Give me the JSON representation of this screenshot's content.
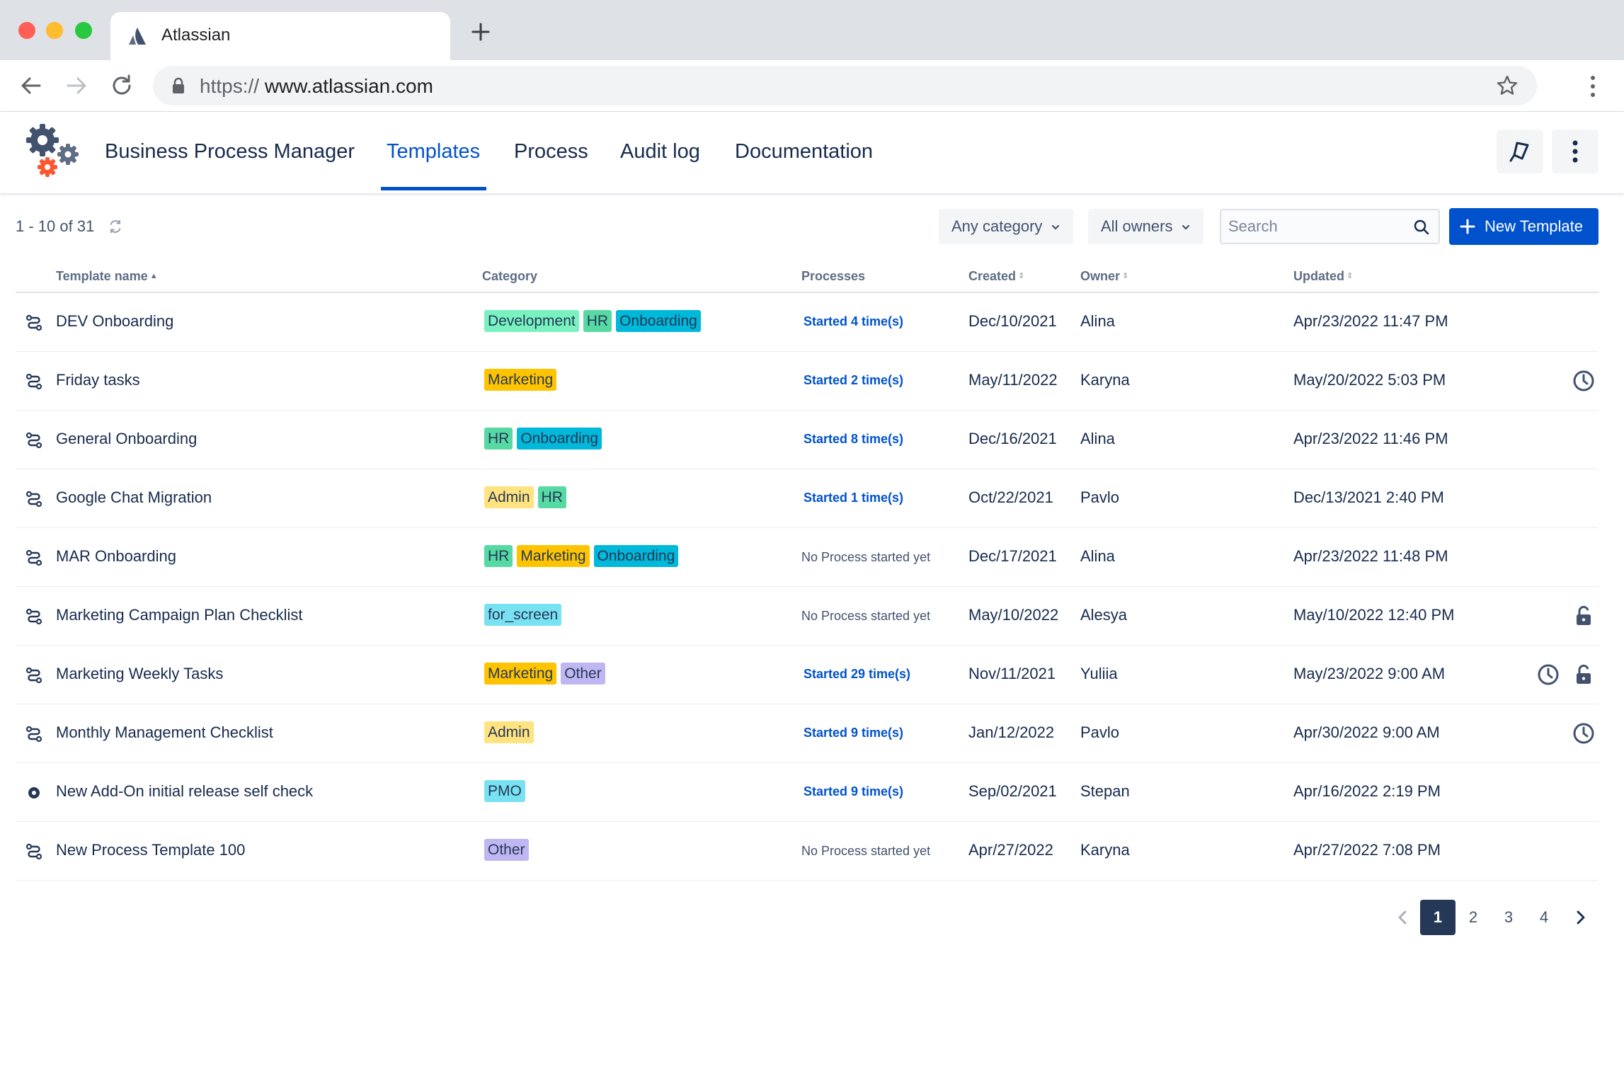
{
  "browser": {
    "tab_title": "Atlassian",
    "url_scheme": "https://",
    "url_host": " www.atlassian.com"
  },
  "app": {
    "name": "Business Process Manager",
    "nav": [
      "Templates",
      "Process",
      "Audit log",
      "Documentation"
    ],
    "active_nav": "Templates"
  },
  "toolbar": {
    "count_text": "1 - 10 of 31",
    "category_filter": "Any category",
    "owner_filter": "All owners",
    "search_placeholder": "Search",
    "new_button": "New Template"
  },
  "table": {
    "headers": {
      "name": "Template name",
      "category": "Category",
      "processes": "Processes",
      "created": "Created",
      "owner": "Owner",
      "updated": "Updated"
    },
    "rows": [
      {
        "name": "DEV Onboarding",
        "tags": [
          "Development",
          "HR",
          "Onboarding"
        ],
        "processes": "Started 4 time(s)",
        "started": true,
        "created": "Dec/10/2021",
        "owner": "Alina",
        "updated": "Apr/23/2022 11:47 PM",
        "clock": false,
        "lock": false,
        "icon": "process"
      },
      {
        "name": "Friday tasks",
        "tags": [
          "Marketing"
        ],
        "processes": "Started 2 time(s)",
        "started": true,
        "created": "May/11/2022",
        "owner": "Karyna",
        "updated": "May/20/2022 5:03 PM",
        "clock": true,
        "lock": false,
        "icon": "process"
      },
      {
        "name": "General Onboarding",
        "tags": [
          "HR",
          "Onboarding"
        ],
        "processes": "Started 8 time(s)",
        "started": true,
        "created": "Dec/16/2021",
        "owner": "Alina",
        "updated": "Apr/23/2022 11:46 PM",
        "clock": false,
        "lock": false,
        "icon": "process"
      },
      {
        "name": "Google Chat Migration",
        "tags": [
          "Admin",
          "HR"
        ],
        "processes": "Started 1 time(s)",
        "started": true,
        "created": "Oct/22/2021",
        "owner": "Pavlo",
        "updated": "Dec/13/2021 2:40 PM",
        "clock": false,
        "lock": false,
        "icon": "process"
      },
      {
        "name": "MAR Onboarding",
        "tags": [
          "HR",
          "Marketing",
          "Onboarding"
        ],
        "processes": "No Process started yet",
        "started": false,
        "created": "Dec/17/2021",
        "owner": "Alina",
        "updated": "Apr/23/2022 11:48 PM",
        "clock": false,
        "lock": false,
        "icon": "process"
      },
      {
        "name": "Marketing Campaign Plan Checklist",
        "tags": [
          "for_screen"
        ],
        "processes": "No Process started yet",
        "started": false,
        "created": "May/10/2022",
        "owner": "Alesya",
        "updated": "May/10/2022 12:40 PM",
        "clock": false,
        "lock": true,
        "icon": "process"
      },
      {
        "name": "Marketing Weekly Tasks",
        "tags": [
          "Marketing",
          "Other"
        ],
        "processes": "Started 29 time(s)",
        "started": true,
        "created": "Nov/11/2021",
        "owner": "Yuliia",
        "updated": "May/23/2022 9:00 AM",
        "clock": true,
        "lock": true,
        "icon": "process"
      },
      {
        "name": "Monthly Management Checklist",
        "tags": [
          "Admin"
        ],
        "processes": "Started 9 time(s)",
        "started": true,
        "created": "Jan/12/2022",
        "owner": "Pavlo",
        "updated": "Apr/30/2022 9:00 AM",
        "clock": true,
        "lock": false,
        "icon": "process"
      },
      {
        "name": "New Add-On initial release self check",
        "tags": [
          "PMO"
        ],
        "processes": "Started 9 time(s)",
        "started": true,
        "created": "Sep/02/2021",
        "owner": "Stepan",
        "updated": "Apr/16/2022 2:19 PM",
        "clock": false,
        "lock": false,
        "icon": "circle"
      },
      {
        "name": "New Process Template 100",
        "tags": [
          "Other"
        ],
        "processes": "No Process started yet",
        "started": false,
        "created": "Apr/27/2022",
        "owner": "Karyna",
        "updated": "Apr/27/2022 7:08 PM",
        "clock": false,
        "lock": false,
        "icon": "process"
      }
    ]
  },
  "tag_colors": {
    "Development": "#79f2c0",
    "HR": "#57d9a3",
    "Onboarding": "#00b8d9",
    "Marketing": "#ffc400",
    "Admin": "#ffe380",
    "for_screen": "#79e2f2",
    "Other": "#c0b6f2",
    "PMO": "#79e2f2"
  },
  "pagination": {
    "pages": [
      "1",
      "2",
      "3",
      "4"
    ],
    "current": "1"
  }
}
